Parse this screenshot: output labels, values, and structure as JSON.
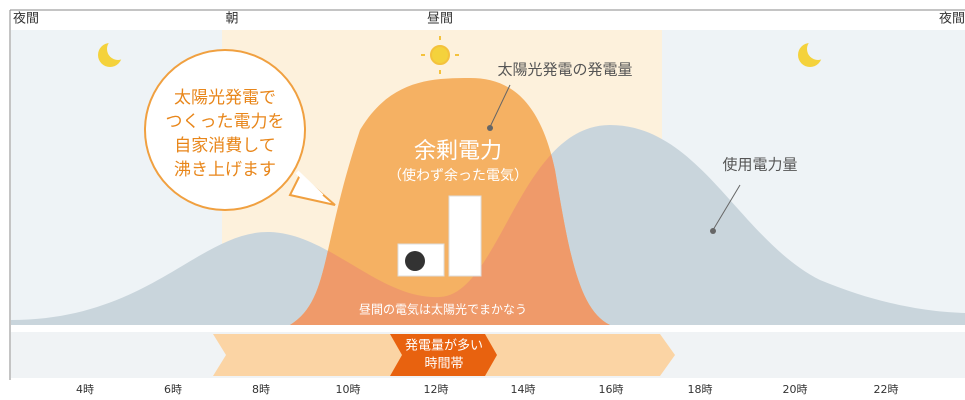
{
  "periods": [
    "夜間",
    "朝",
    "昼間",
    "夜間"
  ],
  "bubble": [
    "太陽光発電で",
    "つくった電力を",
    "自家消費して",
    "沸き上げます"
  ],
  "solar_label": "太陽光発電の発電量",
  "surplus": {
    "title": "余剰電力",
    "note": "（使わず余った電気）"
  },
  "usage_label": "使用電力量",
  "daytime_note": "昼間の電気は太陽光でまかなう",
  "peak_band": [
    "発電量が多い",
    "時間帯"
  ],
  "hours": [
    "4時",
    "6時",
    "8時",
    "10時",
    "12時",
    "14時",
    "16時",
    "18時",
    "20時",
    "22時"
  ]
}
